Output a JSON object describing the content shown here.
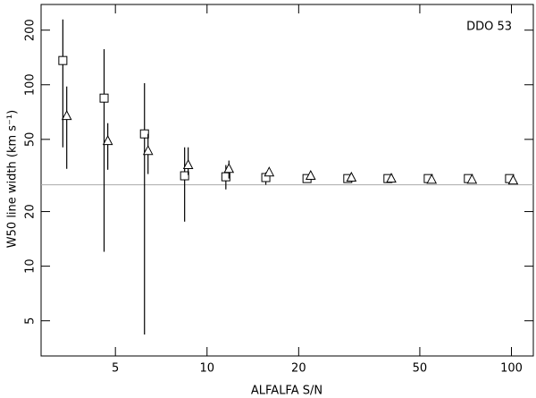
{
  "chart_data": {
    "type": "scatter",
    "xlabel": "ALFALFA S/N",
    "ylabel": "W50 line width (km s⁻¹)",
    "annotation": "DDO 53",
    "xlog": true,
    "ylog": true,
    "xlim": [
      2.85,
      118
    ],
    "ylim": [
      3.2,
      277
    ],
    "xticks": [
      5,
      10,
      20,
      50,
      100
    ],
    "yticks": [
      5,
      10,
      20,
      50,
      100,
      200
    ],
    "hline": 28.1,
    "hline_color": "#aaaaaa",
    "series": [
      {
        "marker": "square",
        "color": "#000000",
        "x": [
          3.36,
          4.59,
          6.23,
          8.44,
          11.53,
          15.6,
          21.3,
          29.0,
          39.3,
          53.3,
          72.2,
          98.6
        ],
        "values": [
          136,
          84.4,
          53.6,
          31.5,
          31.1,
          30.8,
          30.4,
          30.4,
          30.4,
          30.4,
          30.4,
          30.4
        ],
        "err_low": [
          45.2,
          12.0,
          4.2,
          17.6,
          26.5,
          28.1,
          null,
          null,
          null,
          null,
          null,
          null
        ],
        "err_high": [
          229,
          157,
          102,
          45.2,
          36.1,
          32.9,
          null,
          null,
          null,
          null,
          null,
          null
        ]
      },
      {
        "marker": "triangle",
        "color": "#000000",
        "x": [
          3.46,
          4.72,
          6.4,
          8.67,
          11.8,
          16.0,
          21.9,
          29.8,
          40.3,
          54.7,
          74.2,
          101.3
        ],
        "values": [
          67.3,
          49.0,
          43.2,
          36.1,
          34.4,
          32.9,
          31.5,
          30.8,
          30.4,
          30.0,
          30.0,
          29.7
        ],
        "err_low": [
          34.4,
          34.0,
          32.2,
          31.8,
          30.4,
          null,
          null,
          null,
          null,
          null,
          null,
          null
        ],
        "err_high": [
          97.8,
          61.4,
          53.6,
          45.2,
          38.2,
          null,
          null,
          null,
          null,
          null,
          null,
          null
        ]
      }
    ]
  }
}
